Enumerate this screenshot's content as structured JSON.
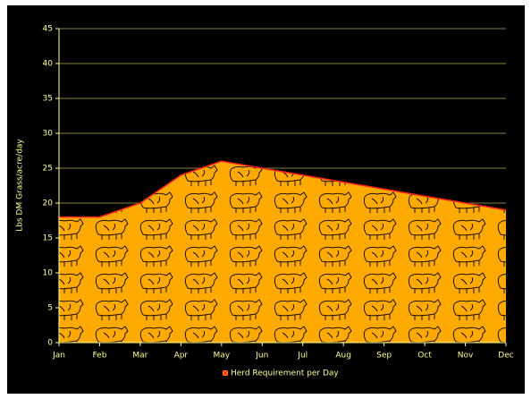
{
  "chart_data": {
    "type": "area",
    "y_label": "Lbs DM Grass/acre/day",
    "categories": [
      "Jan",
      "Feb",
      "Mar",
      "Apr",
      "May",
      "Jun",
      "Jul",
      "Aug",
      "Sep",
      "Oct",
      "Nov",
      "Dec"
    ],
    "series": [
      {
        "name": "Herd Requirement per Day",
        "color": "#ffa500",
        "line_color": "#ff2020",
        "values": [
          18,
          18,
          20,
          24,
          26,
          25,
          24,
          23,
          22,
          21,
          20,
          19
        ]
      }
    ],
    "ylim": [
      0,
      45
    ],
    "yticks": [
      0,
      5,
      10,
      15,
      20,
      25,
      30,
      35,
      40,
      45
    ],
    "grid": true,
    "legend": "bottom"
  }
}
